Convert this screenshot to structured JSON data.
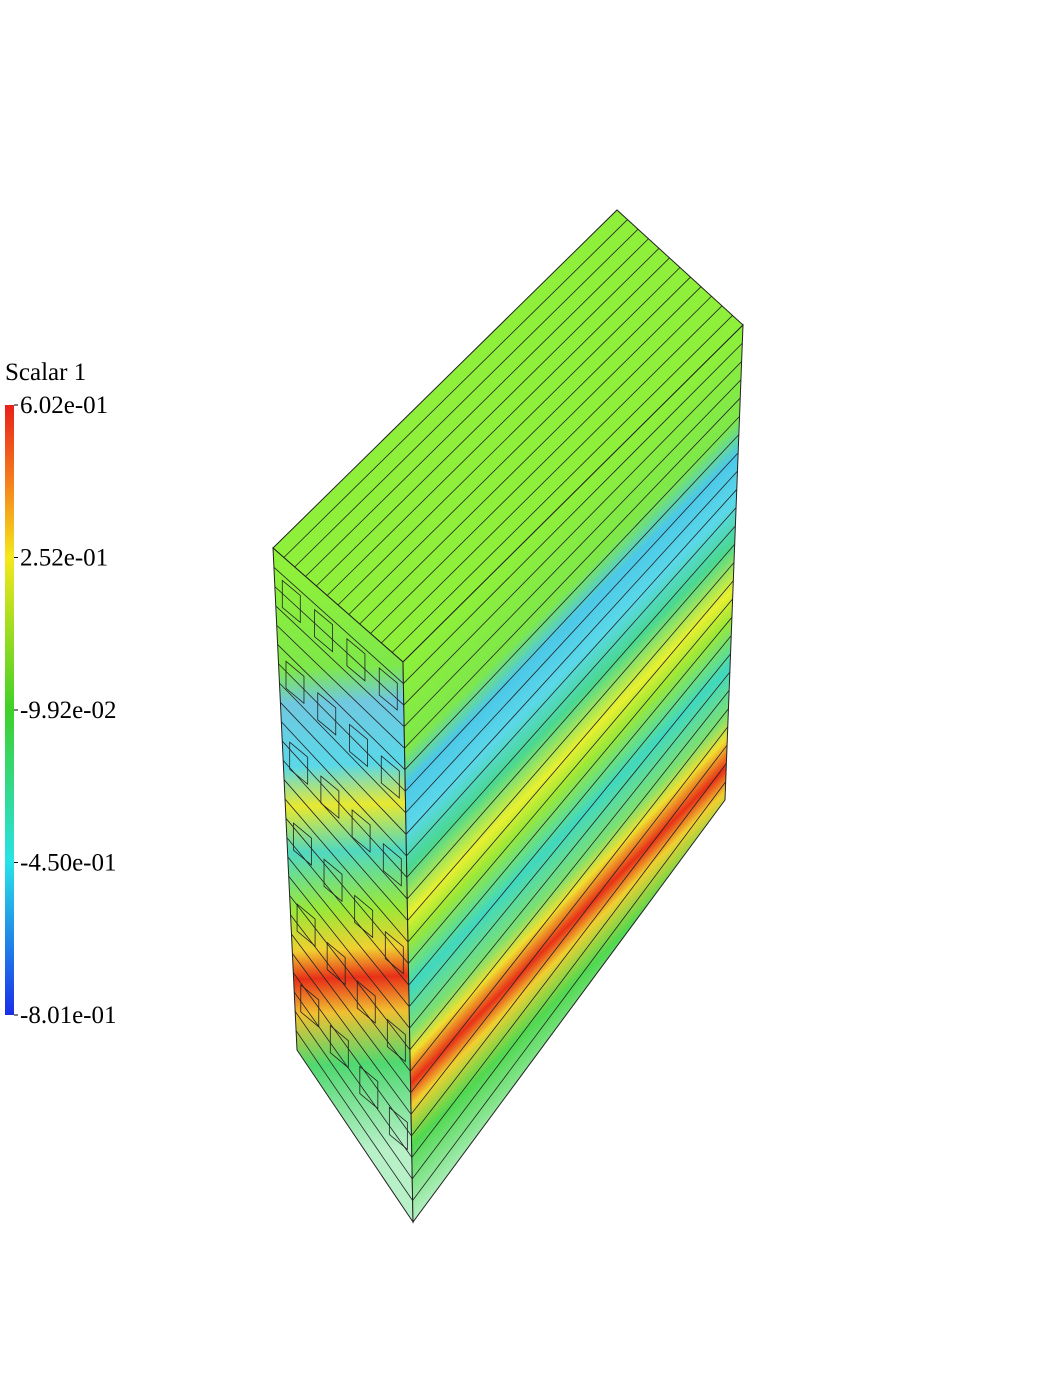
{
  "colorbar": {
    "title": "Scalar 1",
    "ticks": [
      "6.02e-01",
      "2.52e-01",
      "-9.92e-02",
      "-4.50e-01",
      "-8.01e-01"
    ]
  }
}
